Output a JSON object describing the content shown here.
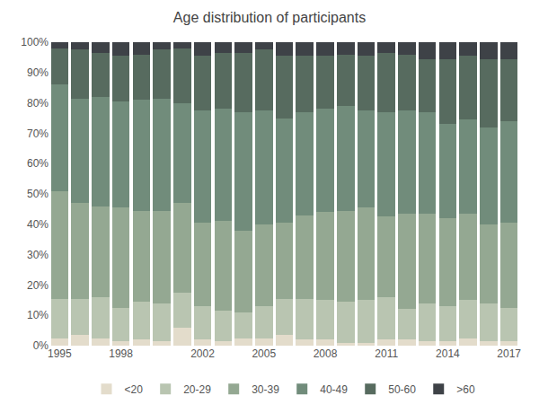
{
  "chart_data": {
    "type": "bar",
    "title": "Age distribution of participants",
    "stacked": true,
    "grid": false,
    "legend": "bottom",
    "categories": [
      "1995",
      null,
      null,
      "1998",
      null,
      null,
      null,
      "2002",
      null,
      null,
      "2005",
      null,
      null,
      "2008",
      null,
      null,
      "2011",
      null,
      null,
      "2014",
      null,
      null,
      "2017"
    ],
    "ylim": [
      0,
      100
    ],
    "yticks": [
      {
        "value": 0,
        "label": "0%"
      },
      {
        "value": 10,
        "label": "10%"
      },
      {
        "value": 20,
        "label": "20%"
      },
      {
        "value": 30,
        "label": "30%"
      },
      {
        "value": 40,
        "label": "40%"
      },
      {
        "value": 50,
        "label": "50%"
      },
      {
        "value": 60,
        "label": "60%"
      },
      {
        "value": 70,
        "label": "70%"
      },
      {
        "value": 80,
        "label": "80%"
      },
      {
        "value": 90,
        "label": "90%"
      },
      {
        "value": 100,
        "label": "100%"
      }
    ],
    "series": [
      {
        "name": "<20",
        "color": "#e3dccb",
        "values": [
          2.5,
          3.5,
          2.5,
          1.5,
          2,
          1.5,
          6,
          2,
          1.5,
          2.5,
          2.5,
          3.5,
          2,
          2,
          1,
          1,
          2,
          2,
          1.5,
          1.5,
          2.5,
          1.5,
          1.5
        ]
      },
      {
        "name": "20-29",
        "color": "#b9c5b1",
        "values": [
          13,
          12,
          13.5,
          11,
          12.5,
          12.5,
          11.5,
          11,
          10,
          8.5,
          10.5,
          12,
          13.5,
          13,
          13.5,
          14,
          14,
          10,
          12.5,
          11.5,
          12.5,
          12.5,
          11
        ]
      },
      {
        "name": "30-39",
        "color": "#94a892",
        "values": [
          35.5,
          31.5,
          30,
          33,
          30,
          30.5,
          29.5,
          27.5,
          29.5,
          27,
          27,
          25,
          27.5,
          29,
          30,
          30.5,
          26.5,
          31.5,
          29.5,
          29,
          28.5,
          26,
          28
        ]
      },
      {
        "name": "40-49",
        "color": "#718c7b",
        "values": [
          35,
          34.5,
          36,
          35,
          36.5,
          37,
          33,
          37,
          37,
          39,
          37.5,
          34.5,
          34,
          34,
          34.5,
          32,
          34.5,
          34,
          33.5,
          31,
          31,
          32,
          33.5
        ]
      },
      {
        "name": "50-60",
        "color": "#576b5f",
        "values": [
          12,
          16,
          14.5,
          15,
          15,
          16,
          18,
          18,
          18.5,
          19.5,
          20,
          20.5,
          18.5,
          17.5,
          17,
          18,
          19.5,
          18.5,
          17.5,
          21.5,
          21,
          22.5,
          20.5
        ]
      },
      {
        "name": ">60",
        "color": "#3e4247",
        "values": [
          2,
          2.5,
          3.5,
          4.5,
          4,
          2.5,
          2,
          4.5,
          3.5,
          3.5,
          2.5,
          4.5,
          4.5,
          4.5,
          4,
          4.5,
          3.5,
          4,
          5.5,
          5.5,
          4.5,
          5.5,
          5.5
        ]
      }
    ]
  }
}
